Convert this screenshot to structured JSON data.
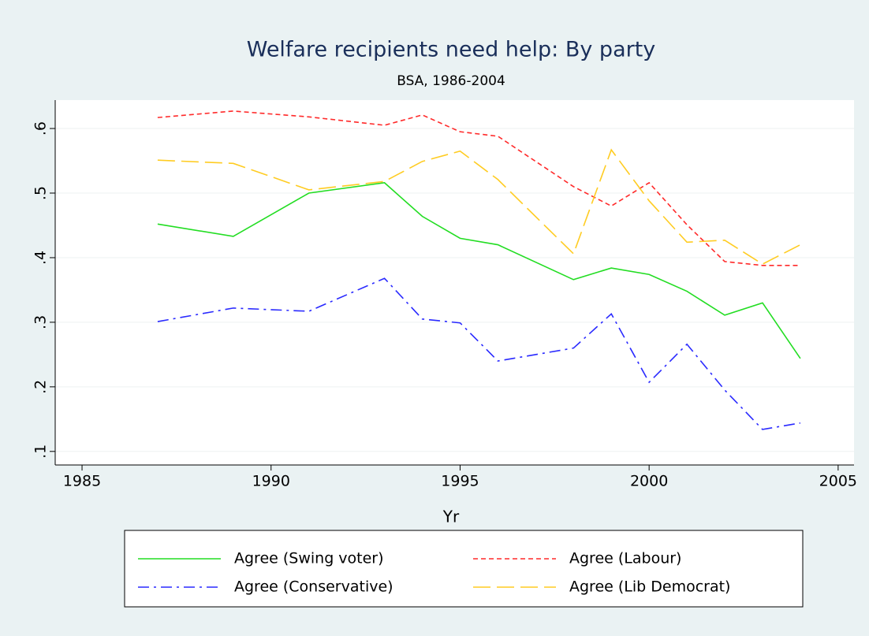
{
  "chart_data": {
    "type": "line",
    "title": "Welfare recipients need help: By party",
    "subtitle": "BSA, 1986-2004",
    "x_label": "Yr",
    "x": [
      1987,
      1989,
      1991,
      1993,
      1994,
      1995,
      1996,
      1998,
      1999,
      2000,
      2001,
      2002,
      2003,
      2004
    ],
    "series": [
      {
        "name": "Agree (Swing voter)",
        "color": "#22dd22",
        "style": "solid",
        "values": [
          0.452,
          0.433,
          0.5,
          0.516,
          0.464,
          0.43,
          0.42,
          0.366,
          0.384,
          0.374,
          0.348,
          0.311,
          0.33,
          0.244
        ]
      },
      {
        "name": "Agree (Labour)",
        "color": "#ff2a2a",
        "style": "short-dash",
        "values": [
          0.617,
          0.627,
          0.618,
          0.605,
          0.621,
          0.595,
          0.588,
          0.51,
          0.48,
          0.516,
          0.451,
          0.394,
          0.388,
          0.388
        ]
      },
      {
        "name": "Agree (Conservative)",
        "color": "#2a2aff",
        "style": "dash-dot",
        "values": [
          0.301,
          0.322,
          0.317,
          0.368,
          0.305,
          0.299,
          0.24,
          0.26,
          0.313,
          0.207,
          0.266,
          0.195,
          0.134,
          0.144
        ]
      },
      {
        "name": "Agree (Lib Democrat)",
        "color": "#ffcc22",
        "style": "long-dash",
        "values": [
          0.551,
          0.546,
          0.505,
          0.518,
          0.549,
          0.565,
          0.521,
          0.406,
          0.567,
          0.488,
          0.424,
          0.427,
          0.39,
          0.42
        ]
      }
    ],
    "xlim": [
      1984.29,
      2005.42
    ],
    "xticks": [
      1985,
      1990,
      1995,
      2000,
      2005
    ],
    "ylim": [
      0.079,
      0.644
    ],
    "yticks": [
      {
        "value": 0.1,
        "label": ".1"
      },
      {
        "value": 0.2,
        "label": ".2"
      },
      {
        "value": 0.3,
        "label": ".3"
      },
      {
        "value": 0.4,
        "label": ".4"
      },
      {
        "value": 0.5,
        "label": ".5"
      },
      {
        "value": 0.6,
        "label": ".6"
      }
    ],
    "grid": true,
    "legend": "bottom"
  }
}
